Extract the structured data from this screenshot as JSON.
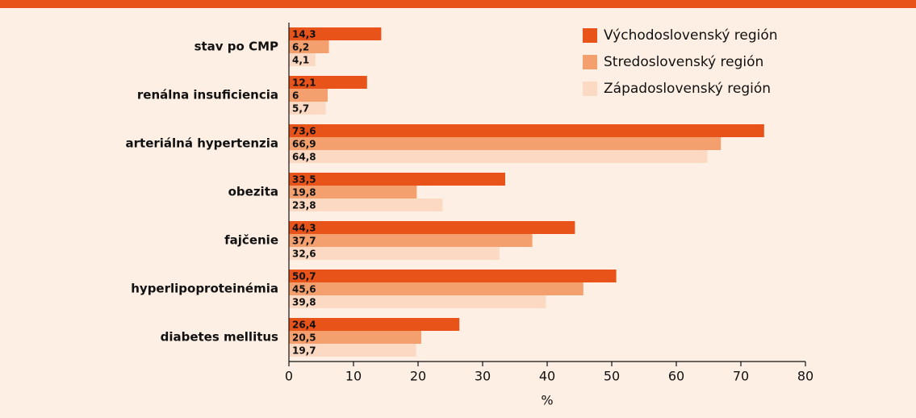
{
  "chart_data": {
    "type": "bar",
    "orientation": "horizontal",
    "xlabel": "%",
    "categories": [
      "stav po CMP",
      "renálna insuficiencia",
      "arteriálná hypertenzia",
      "obezita",
      "fajčenie",
      "hyperlipoproteinémia",
      "diabetes mellitus"
    ],
    "series": [
      {
        "name": "Východoslovenský región",
        "color": "#e8531a",
        "values": [
          14.3,
          12.1,
          73.6,
          33.5,
          44.3,
          50.7,
          26.4
        ],
        "value_labels": [
          "14,3",
          "12,1",
          "73,6",
          "33,5",
          "44,3",
          "50,7",
          "26,4"
        ]
      },
      {
        "name": "Stredoslovenský región",
        "color": "#f4a06e",
        "values": [
          6.2,
          6,
          66.9,
          19.8,
          37.7,
          45.6,
          20.5
        ],
        "value_labels": [
          "6,2",
          "6",
          "66,9",
          "19,8",
          "37,7",
          "45,6",
          "20,5"
        ]
      },
      {
        "name": "Západoslovenský región",
        "color": "#fbd9c2",
        "values": [
          4.1,
          5.7,
          64.8,
          23.8,
          32.6,
          39.8,
          19.7
        ],
        "value_labels": [
          "4,1",
          "5,7",
          "64,8",
          "23,8",
          "32,6",
          "39,8",
          "19,7"
        ]
      }
    ],
    "xlim": [
      0,
      80
    ],
    "xticks": [
      0,
      10,
      20,
      30,
      40,
      50,
      60,
      70,
      80
    ],
    "legend": "upper right"
  }
}
